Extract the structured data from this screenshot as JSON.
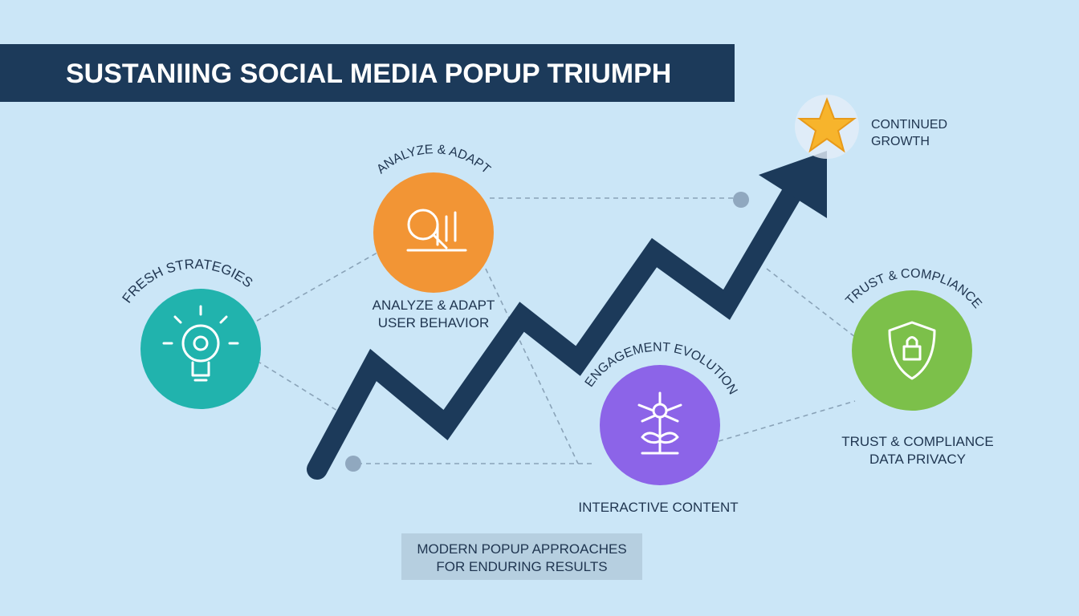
{
  "header": {
    "title": "SUSTANIING SOCIAL MEDIA POPUP TRIUMPH"
  },
  "goal": {
    "lines": [
      "CONTINUED",
      "GROWTH"
    ]
  },
  "nodes": [
    {
      "title": "FRESH STRATEGIES",
      "description": []
    },
    {
      "title": "ANALYZE & ADAPT",
      "description": [
        "ANALYZE & ADAPT",
        "USER BEHAVIOR"
      ]
    },
    {
      "title": "ENGAGEMENT EVOLUTION",
      "description": [
        "INTERACTIVE CONTENT"
      ]
    },
    {
      "title": "TRUST & COMPLIANCE",
      "description": [
        "TRUST & COMPLIANCE",
        "DATA PRIVACY"
      ]
    }
  ],
  "footer": {
    "lines": [
      "MODERN POPUP APPROACHES",
      "FOR ENDURING RESULTS"
    ]
  }
}
